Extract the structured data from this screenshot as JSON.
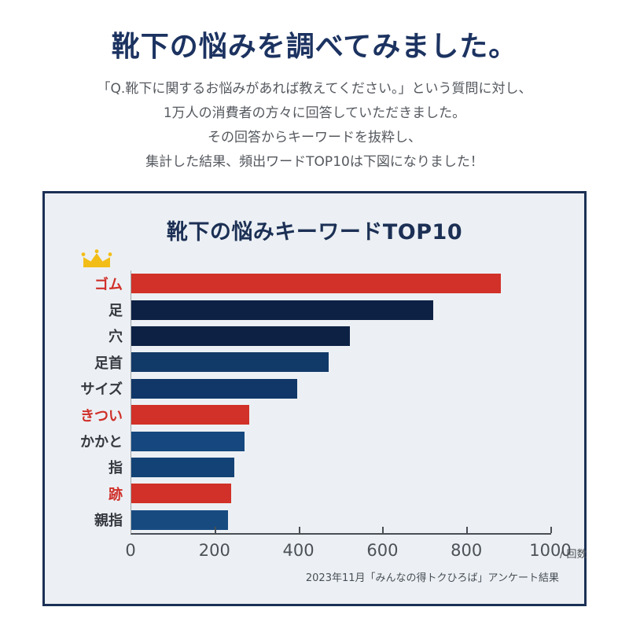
{
  "header": {
    "title": "靴下の悩みを調べてみました。"
  },
  "intro": {
    "lines": [
      "「Q.靴下に関するお悩みがあれば教えてください。」という質問に対し、",
      "1万人の消費者の方々に回答していただきました。",
      "その回答からキーワードを抜粋し、",
      "集計した結果、頻出ワードTOP10は下図になりました！"
    ]
  },
  "colors": {
    "title_navy": "#1c3361",
    "panel_border_navy": "#1c3055",
    "panel_background": "#ecf0f4",
    "accent_red": "#d0302a",
    "crown_gold": "#f3bd17",
    "axis_gray": "#494f55"
  },
  "chart_data": {
    "type": "bar",
    "orientation": "horizontal",
    "title": "靴下の悩みキーワードTOP10",
    "categories": [
      "ゴム",
      "足",
      "穴",
      "足首",
      "サイズ",
      "きつい",
      "かかと",
      "指",
      "跡",
      "親指"
    ],
    "values": [
      880,
      720,
      520,
      470,
      395,
      280,
      270,
      245,
      238,
      230
    ],
    "items": [
      {
        "label": "ゴム",
        "value": 880,
        "color": "#d13128",
        "highlight": true,
        "crown": true
      },
      {
        "label": "足",
        "value": 720,
        "color": "#0d2144",
        "highlight": false
      },
      {
        "label": "穴",
        "value": 520,
        "color": "#0d2144",
        "highlight": false
      },
      {
        "label": "足首",
        "value": 470,
        "color": "#123a68",
        "highlight": false
      },
      {
        "label": "サイズ",
        "value": 395,
        "color": "#103767",
        "highlight": false
      },
      {
        "label": "きつい",
        "value": 280,
        "color": "#d13128",
        "highlight": true
      },
      {
        "label": "かかと",
        "value": 270,
        "color": "#16477e",
        "highlight": false
      },
      {
        "label": "指",
        "value": 245,
        "color": "#134376",
        "highlight": false
      },
      {
        "label": "跡",
        "value": 238,
        "color": "#d13128",
        "highlight": true
      },
      {
        "label": "親指",
        "value": 230,
        "color": "#174b80",
        "highlight": false
      }
    ],
    "xticks": [
      0,
      200,
      400,
      600,
      800,
      1000
    ],
    "xlim": [
      0,
      1000
    ],
    "x_unit_label": "/ 回数",
    "grid": false,
    "legend": false,
    "source": "2023年11月「みんなの得トクひろば」アンケート結果"
  }
}
